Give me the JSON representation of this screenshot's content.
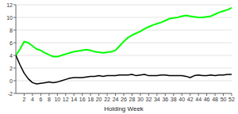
{
  "chart_data": {
    "type": "line",
    "xlabel": "Holding Week",
    "x": [
      0,
      1,
      2,
      3,
      4,
      5,
      6,
      7,
      8,
      9,
      10,
      11,
      12,
      13,
      14,
      15,
      16,
      17,
      18,
      19,
      20,
      21,
      22,
      23,
      24,
      25,
      26,
      27,
      28,
      29,
      30,
      31,
      32,
      33,
      34,
      35,
      36,
      37,
      38,
      39,
      40,
      41,
      42,
      43,
      44,
      45,
      46,
      47,
      48,
      49,
      50,
      51,
      52
    ],
    "series": [
      {
        "color": "#00ff00",
        "values": [
          4.0,
          5.0,
          6.2,
          6.0,
          5.5,
          5.0,
          4.8,
          4.4,
          4.1,
          3.8,
          3.8,
          4.0,
          4.2,
          4.4,
          4.6,
          4.7,
          4.8,
          4.9,
          4.8,
          4.6,
          4.5,
          4.4,
          4.5,
          4.6,
          4.8,
          5.5,
          6.2,
          6.8,
          7.2,
          7.5,
          7.8,
          8.2,
          8.5,
          8.8,
          9.0,
          9.2,
          9.5,
          9.8,
          9.9,
          10.0,
          10.2,
          10.3,
          10.2,
          10.1,
          10.0,
          10.0,
          10.1,
          10.2,
          10.5,
          10.8,
          11.0,
          11.2,
          11.5
        ]
      },
      {
        "color": "#000000",
        "values": [
          4.0,
          2.5,
          1.2,
          0.3,
          -0.3,
          -0.5,
          -0.4,
          -0.3,
          -0.2,
          -0.3,
          -0.2,
          0.0,
          0.2,
          0.4,
          0.5,
          0.5,
          0.5,
          0.6,
          0.7,
          0.7,
          0.8,
          0.7,
          0.8,
          0.8,
          0.8,
          0.9,
          0.9,
          0.9,
          1.0,
          0.8,
          0.9,
          1.0,
          0.8,
          0.8,
          0.8,
          0.9,
          0.9,
          0.8,
          0.8,
          0.8,
          0.8,
          0.7,
          0.5,
          0.8,
          0.9,
          0.8,
          0.8,
          0.9,
          0.8,
          0.9,
          0.9,
          1.0,
          1.0
        ]
      }
    ],
    "xlim": [
      0,
      52
    ],
    "ylim": [
      -2,
      12
    ],
    "xticks": [
      2,
      4,
      6,
      8,
      10,
      12,
      14,
      16,
      18,
      20,
      22,
      24,
      26,
      28,
      30,
      32,
      34,
      36,
      38,
      40,
      42,
      44,
      46,
      48,
      50,
      52
    ],
    "yticks": [
      -2,
      0,
      2,
      4,
      6,
      8,
      10,
      12
    ],
    "grid": true
  }
}
